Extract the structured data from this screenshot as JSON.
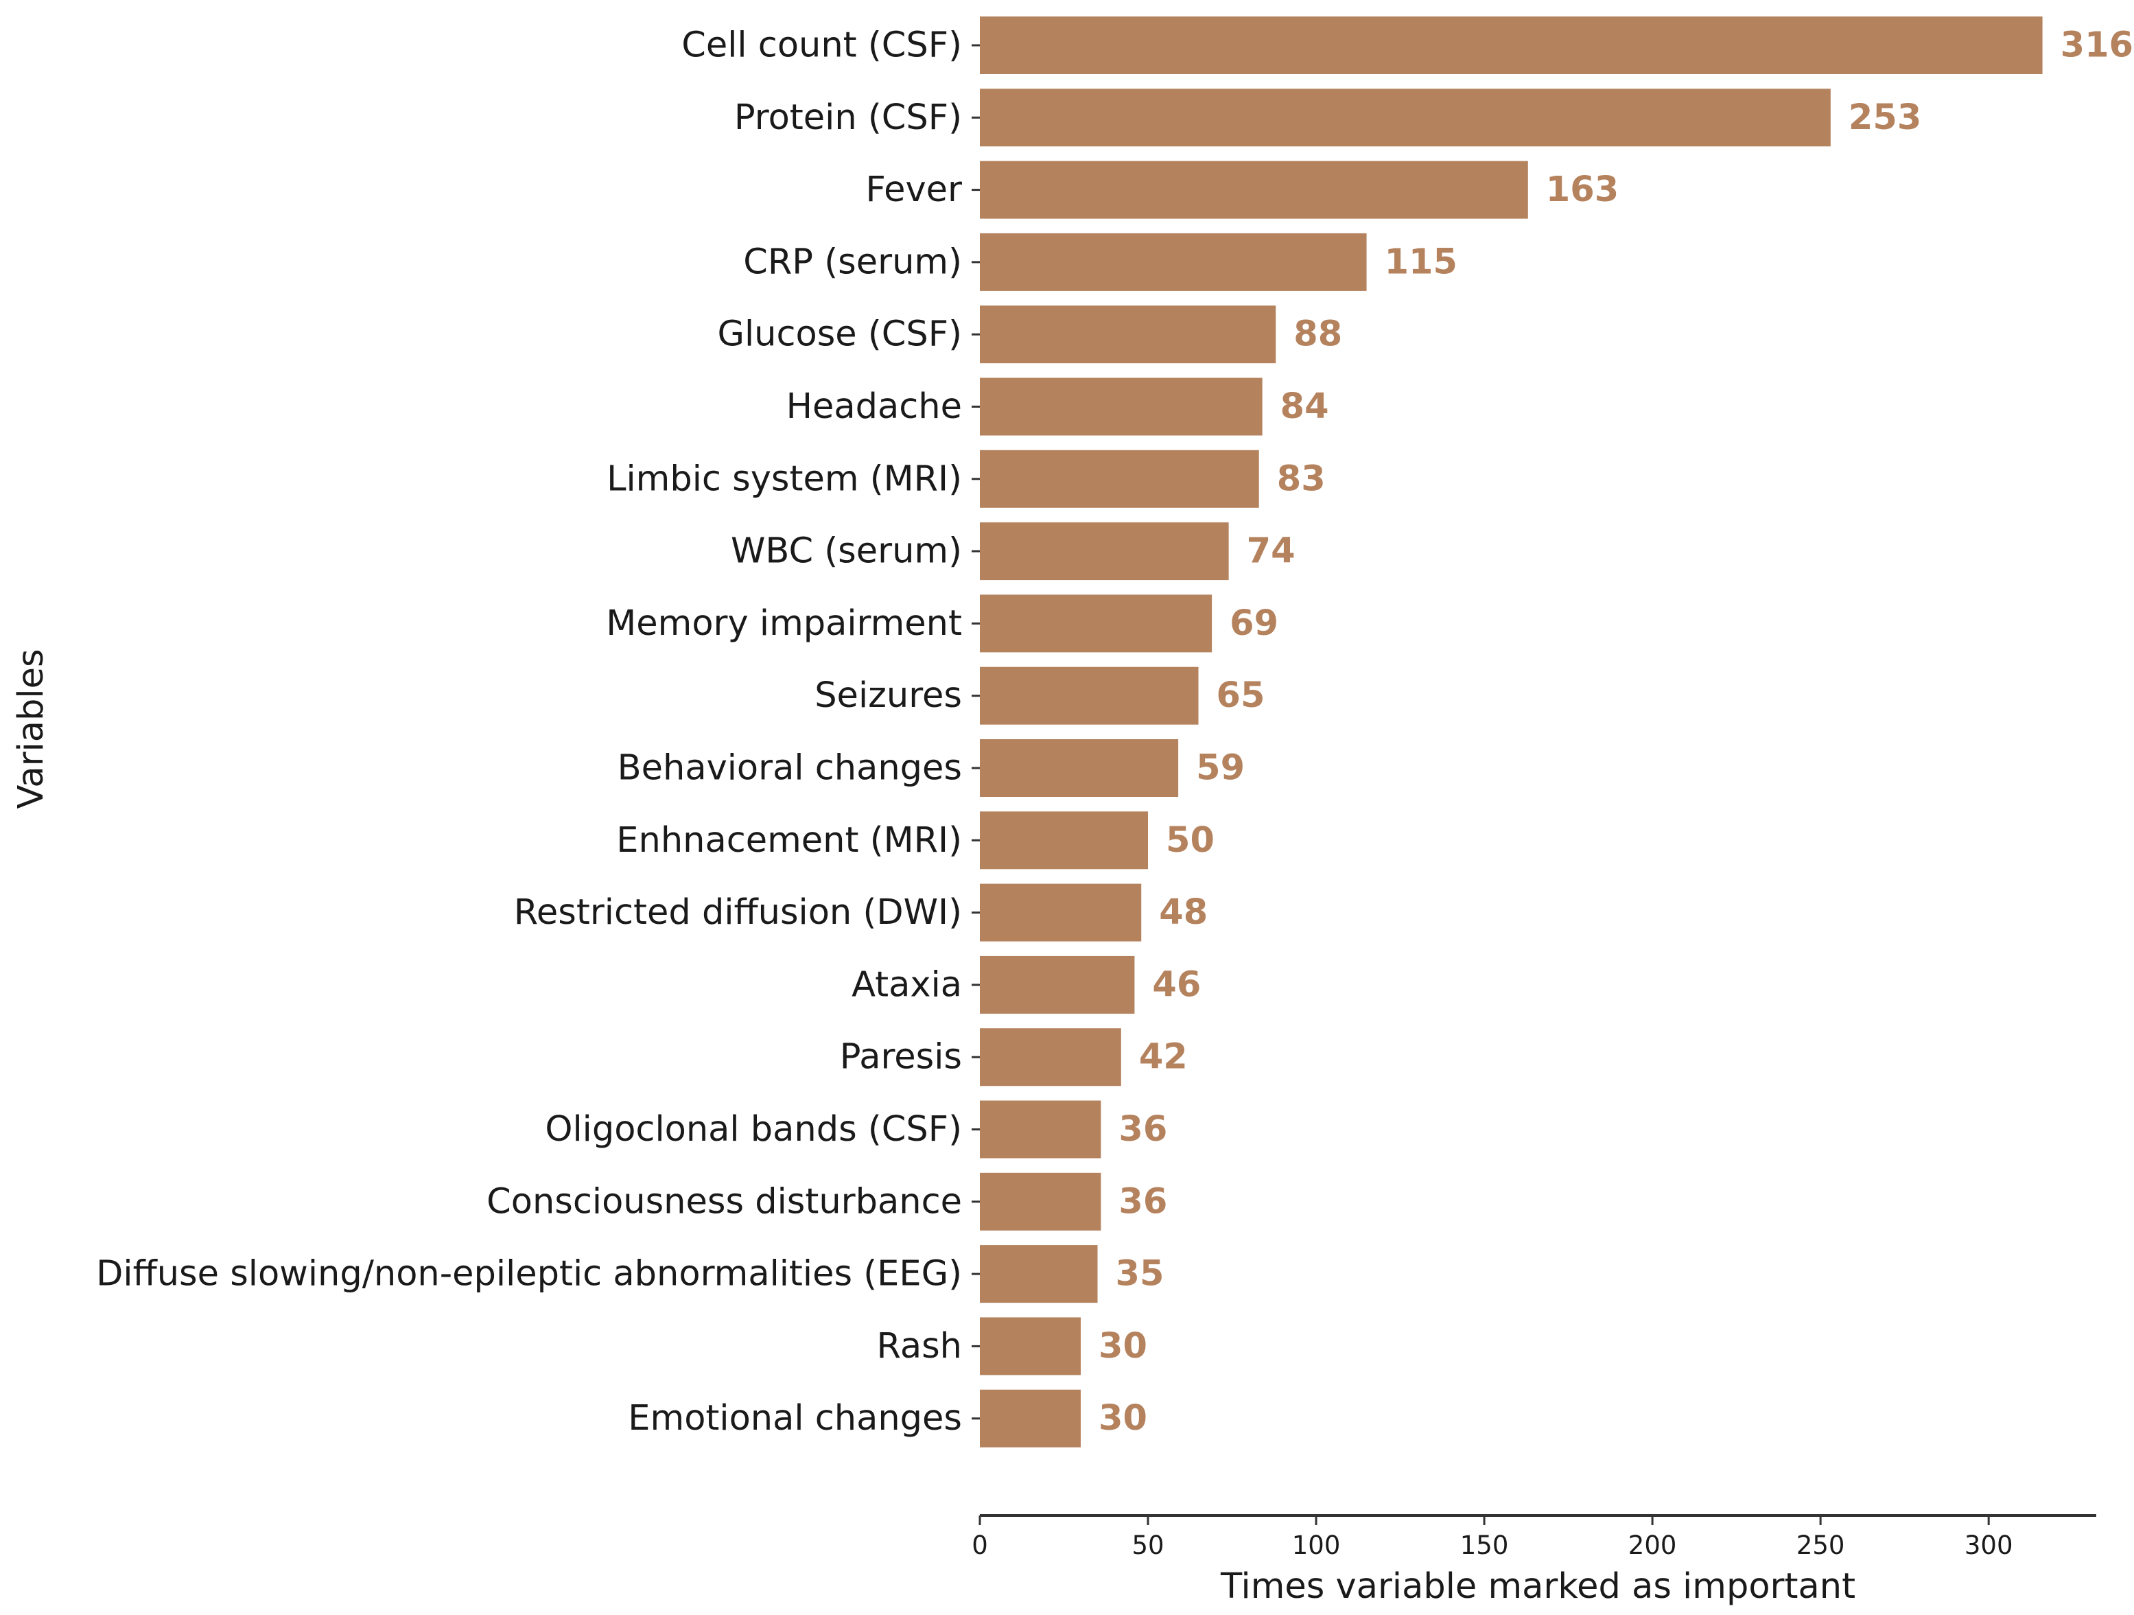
{
  "chart_data": {
    "type": "bar",
    "orientation": "horizontal",
    "title": "",
    "xlabel": "Times variable marked as important",
    "ylabel": "Variables",
    "categories": [
      "Cell count (CSF)",
      "Protein (CSF)",
      "Fever",
      "CRP (serum)",
      "Glucose (CSF)",
      "Headache",
      "Limbic system (MRI)",
      "WBC (serum)",
      "Memory impairment",
      "Seizures",
      "Behavioral changes",
      "Enhnacement (MRI)",
      "Restricted diffusion (DWI)",
      "Ataxia",
      "Paresis",
      "Oligoclonal bands (CSF)",
      "Consciousness disturbance",
      "Diffuse slowing/non-epileptic abnormalities (EEG)",
      "Rash",
      "Emotional changes"
    ],
    "values": [
      316,
      253,
      163,
      115,
      88,
      84,
      83,
      74,
      69,
      65,
      59,
      50,
      48,
      46,
      42,
      36,
      36,
      35,
      30,
      30
    ],
    "xlim": [
      0,
      332
    ],
    "xticks": [
      0,
      50,
      100,
      150,
      200,
      250,
      300
    ],
    "grid": false,
    "legend": "none",
    "bar_color": "#b5825e",
    "value_label_color": "#b5825e"
  }
}
